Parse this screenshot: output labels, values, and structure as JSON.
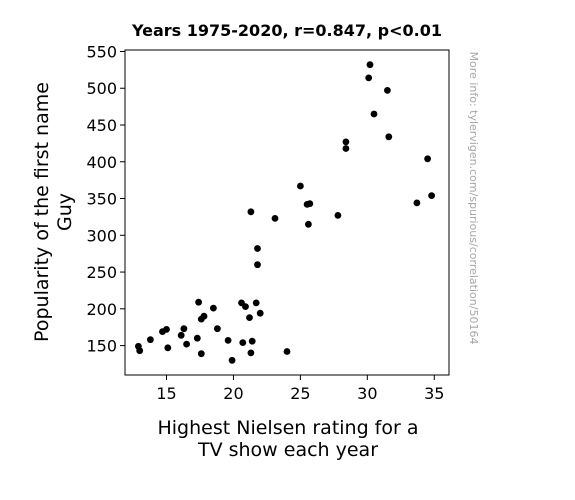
{
  "chart_data": {
    "type": "scatter",
    "title": "Years 1975-2020, r=0.847, p<0.01",
    "xlabel_lines": [
      "Highest Nielsen rating for a",
      "TV show each year"
    ],
    "ylabel_lines": [
      "Popularity of the first name",
      "Guy"
    ],
    "watermark": "More info: tylervigen.com/spurious/correlation/50164",
    "xlim": [
      11.9,
      36.1
    ],
    "ylim": [
      110,
      552
    ],
    "xticks": [
      15,
      20,
      25,
      30,
      35
    ],
    "yticks": [
      150,
      200,
      250,
      300,
      350,
      400,
      450,
      500,
      550
    ],
    "grid": false,
    "marker_color": "#000000",
    "points": [
      {
        "x": 12.9,
        "y": 149
      },
      {
        "x": 13.0,
        "y": 143
      },
      {
        "x": 13.8,
        "y": 158
      },
      {
        "x": 14.7,
        "y": 169
      },
      {
        "x": 15.0,
        "y": 172
      },
      {
        "x": 15.1,
        "y": 147
      },
      {
        "x": 16.1,
        "y": 164
      },
      {
        "x": 16.3,
        "y": 173
      },
      {
        "x": 16.5,
        "y": 152
      },
      {
        "x": 17.3,
        "y": 160
      },
      {
        "x": 17.4,
        "y": 209
      },
      {
        "x": 17.6,
        "y": 186
      },
      {
        "x": 17.6,
        "y": 139
      },
      {
        "x": 17.8,
        "y": 190
      },
      {
        "x": 18.5,
        "y": 201
      },
      {
        "x": 18.8,
        "y": 173
      },
      {
        "x": 19.6,
        "y": 157
      },
      {
        "x": 19.9,
        "y": 130
      },
      {
        "x": 20.6,
        "y": 208
      },
      {
        "x": 20.7,
        "y": 154
      },
      {
        "x": 20.9,
        "y": 203
      },
      {
        "x": 21.2,
        "y": 188
      },
      {
        "x": 21.3,
        "y": 140
      },
      {
        "x": 21.3,
        "y": 332
      },
      {
        "x": 21.4,
        "y": 156
      },
      {
        "x": 21.7,
        "y": 208
      },
      {
        "x": 21.8,
        "y": 282
      },
      {
        "x": 21.8,
        "y": 260
      },
      {
        "x": 22.0,
        "y": 194
      },
      {
        "x": 23.1,
        "y": 323
      },
      {
        "x": 24.0,
        "y": 142
      },
      {
        "x": 25.0,
        "y": 367
      },
      {
        "x": 25.5,
        "y": 342
      },
      {
        "x": 25.7,
        "y": 343
      },
      {
        "x": 25.6,
        "y": 315
      },
      {
        "x": 27.8,
        "y": 327
      },
      {
        "x": 28.4,
        "y": 427
      },
      {
        "x": 28.4,
        "y": 418
      },
      {
        "x": 30.1,
        "y": 514
      },
      {
        "x": 30.2,
        "y": 532
      },
      {
        "x": 30.5,
        "y": 465
      },
      {
        "x": 31.5,
        "y": 497
      },
      {
        "x": 31.6,
        "y": 434
      },
      {
        "x": 33.7,
        "y": 344
      },
      {
        "x": 34.5,
        "y": 404
      },
      {
        "x": 34.8,
        "y": 354
      }
    ]
  }
}
